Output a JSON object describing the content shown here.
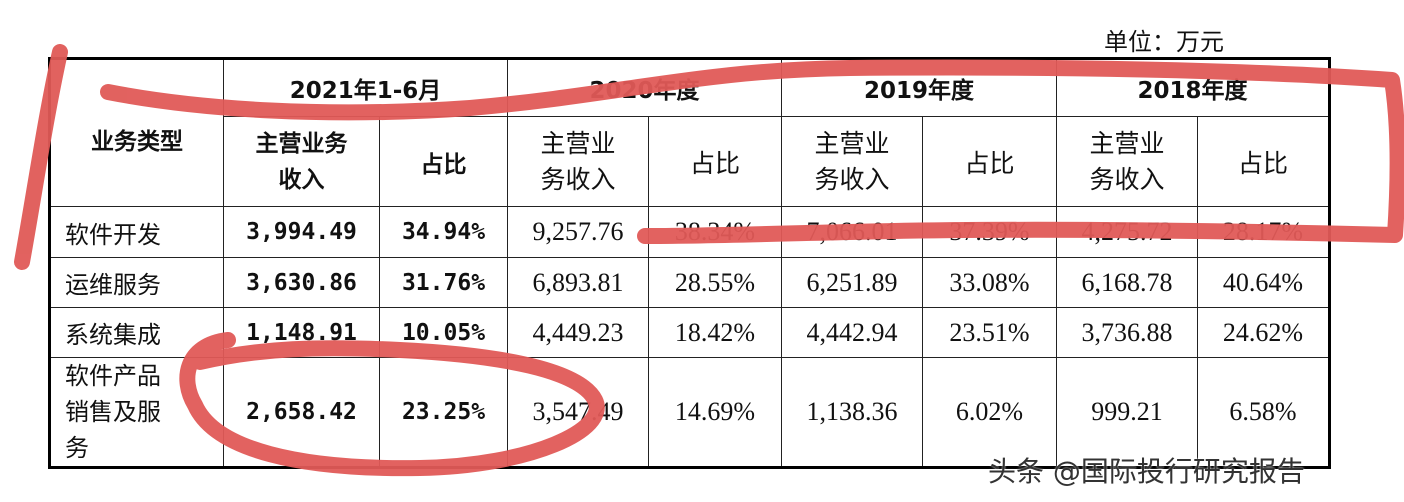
{
  "unit_label": "单位：万元",
  "header": {
    "business_type": "业务类型",
    "periods": [
      "2021年1-6月",
      "2020年度",
      "2019年度",
      "2018年度"
    ],
    "revenue_label_2021": "主营业务收入",
    "revenue_label": "主营业务收入",
    "ratio_label": "占比"
  },
  "rows": [
    {
      "name": "软件开发",
      "values": [
        "3,994.49",
        "34.94%",
        "9,257.76",
        "38.34%",
        "7,066.01",
        "37.39%",
        "4,275.72",
        "28.17%"
      ]
    },
    {
      "name": "运维服务",
      "values": [
        "3,630.86",
        "31.76%",
        "6,893.81",
        "28.55%",
        "6,251.89",
        "33.08%",
        "6,168.78",
        "40.64%"
      ]
    },
    {
      "name": "系统集成",
      "values": [
        "1,148.91",
        "10.05%",
        "4,449.23",
        "18.42%",
        "4,442.94",
        "23.51%",
        "3,736.88",
        "24.62%"
      ]
    },
    {
      "name": "软件产品销售及服务",
      "values": [
        "2,658.42",
        "23.25%",
        "3,547.49",
        "14.69%",
        "1,138.36",
        "6.02%",
        "999.21",
        "6.58%"
      ]
    }
  ],
  "watermark": "头条 @国际投行研究报告",
  "annotation_color": "#e05a57"
}
